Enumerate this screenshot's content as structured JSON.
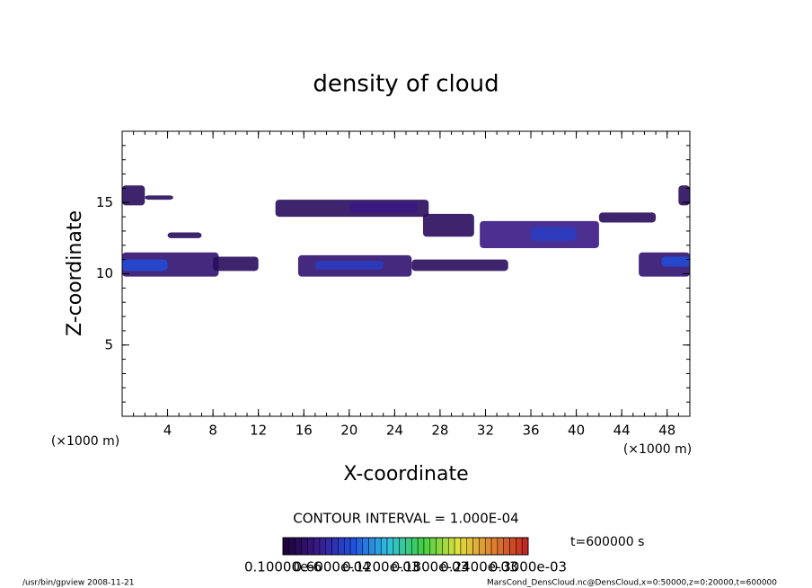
{
  "chart_data": {
    "type": "contour",
    "title": "density of cloud",
    "x_label": "X-coordinate",
    "y_label": "Z-coordinate",
    "x_unit": "(×1000 m)",
    "x_unit_right": "(×1000 m)",
    "xlim": [
      0,
      50
    ],
    "xticks": [
      4,
      8,
      12,
      16,
      20,
      24,
      28,
      32,
      36,
      40,
      44,
      48
    ],
    "ylim": [
      0,
      20
    ],
    "yticks": [
      5,
      10,
      15
    ],
    "contour_interval": "CONTOUR INTERVAL = 1.000E-04",
    "time_label": "t=600000 s",
    "clim": [
      0,
      0.0003
    ],
    "colors": [
      "#1a0033",
      "#3a1a8a",
      "#2050e0",
      "#30c0e0",
      "#40d040",
      "#e0e040",
      "#e08030",
      "#c02020"
    ],
    "cticks": [
      {
        "value": 1e-07,
        "label": "0.10000e-6"
      },
      {
        "value": 6e-05,
        "label": "0.6000e-04"
      },
      {
        "value": 0.00012,
        "label": "0.1200e-03"
      },
      {
        "value": 0.00018,
        "label": "0.1800e-03"
      },
      {
        "value": 0.00024,
        "label": "0.2400e-03"
      },
      {
        "value": 0.0003,
        "label": "0.3000e-03"
      }
    ],
    "cells": [
      [
        0,
        8.5,
        9.8,
        11.5,
        3e-05
      ],
      [
        0,
        4,
        10.2,
        11,
        8e-05
      ],
      [
        0,
        2,
        14.8,
        16.2,
        2e-05
      ],
      [
        2,
        4.5,
        15.2,
        15.5,
        2e-05
      ],
      [
        4,
        7,
        12.5,
        12.9,
        2e-05
      ],
      [
        8,
        12,
        10.2,
        11.2,
        2e-05
      ],
      [
        13.5,
        27,
        14,
        15.2,
        2e-05
      ],
      [
        20,
        26,
        14.3,
        15,
        4e-05
      ],
      [
        15.5,
        25.5,
        9.8,
        11.3,
        3e-05
      ],
      [
        17,
        23,
        10.3,
        10.9,
        7e-05
      ],
      [
        25.5,
        34,
        10.2,
        11,
        2e-05
      ],
      [
        26.5,
        31,
        12.6,
        14.2,
        2e-05
      ],
      [
        31.5,
        42,
        11.8,
        13.7,
        4e-05
      ],
      [
        36,
        40,
        12.3,
        13.3,
        7e-05
      ],
      [
        42,
        47,
        13.6,
        14.3,
        2e-05
      ],
      [
        45.5,
        50,
        9.8,
        11.5,
        3e-05
      ],
      [
        47.5,
        50,
        10.5,
        11.2,
        8e-05
      ],
      [
        49,
        50,
        14.8,
        16.2,
        2e-05
      ]
    ],
    "footer_left": "/usr/bin/gpview  2008-11-21",
    "footer_right": "MarsCond_DensCloud.nc@DensCloud,x=0:50000,z=0:20000,t=600000"
  }
}
